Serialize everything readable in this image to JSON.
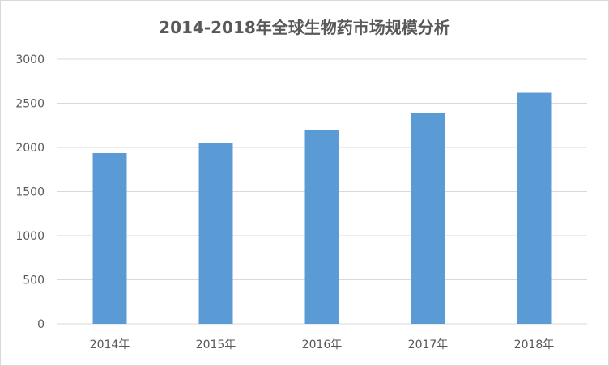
{
  "chart_data": {
    "type": "bar",
    "title": "2014-2018年全球生物药市场规模分析",
    "categories": [
      "2014年",
      "2015年",
      "2016年",
      "2017年",
      "2018年"
    ],
    "values": [
      1936,
      2046,
      2202,
      2394,
      2619
    ],
    "ylim": [
      0,
      3000
    ],
    "yticks": [
      0,
      500,
      1000,
      1500,
      2000,
      2500,
      3000
    ],
    "xlabel": "",
    "ylabel": "",
    "grid": true,
    "legend": "none",
    "bar_color": "#5b9bd5",
    "grid_color": "#d9d9d9"
  }
}
